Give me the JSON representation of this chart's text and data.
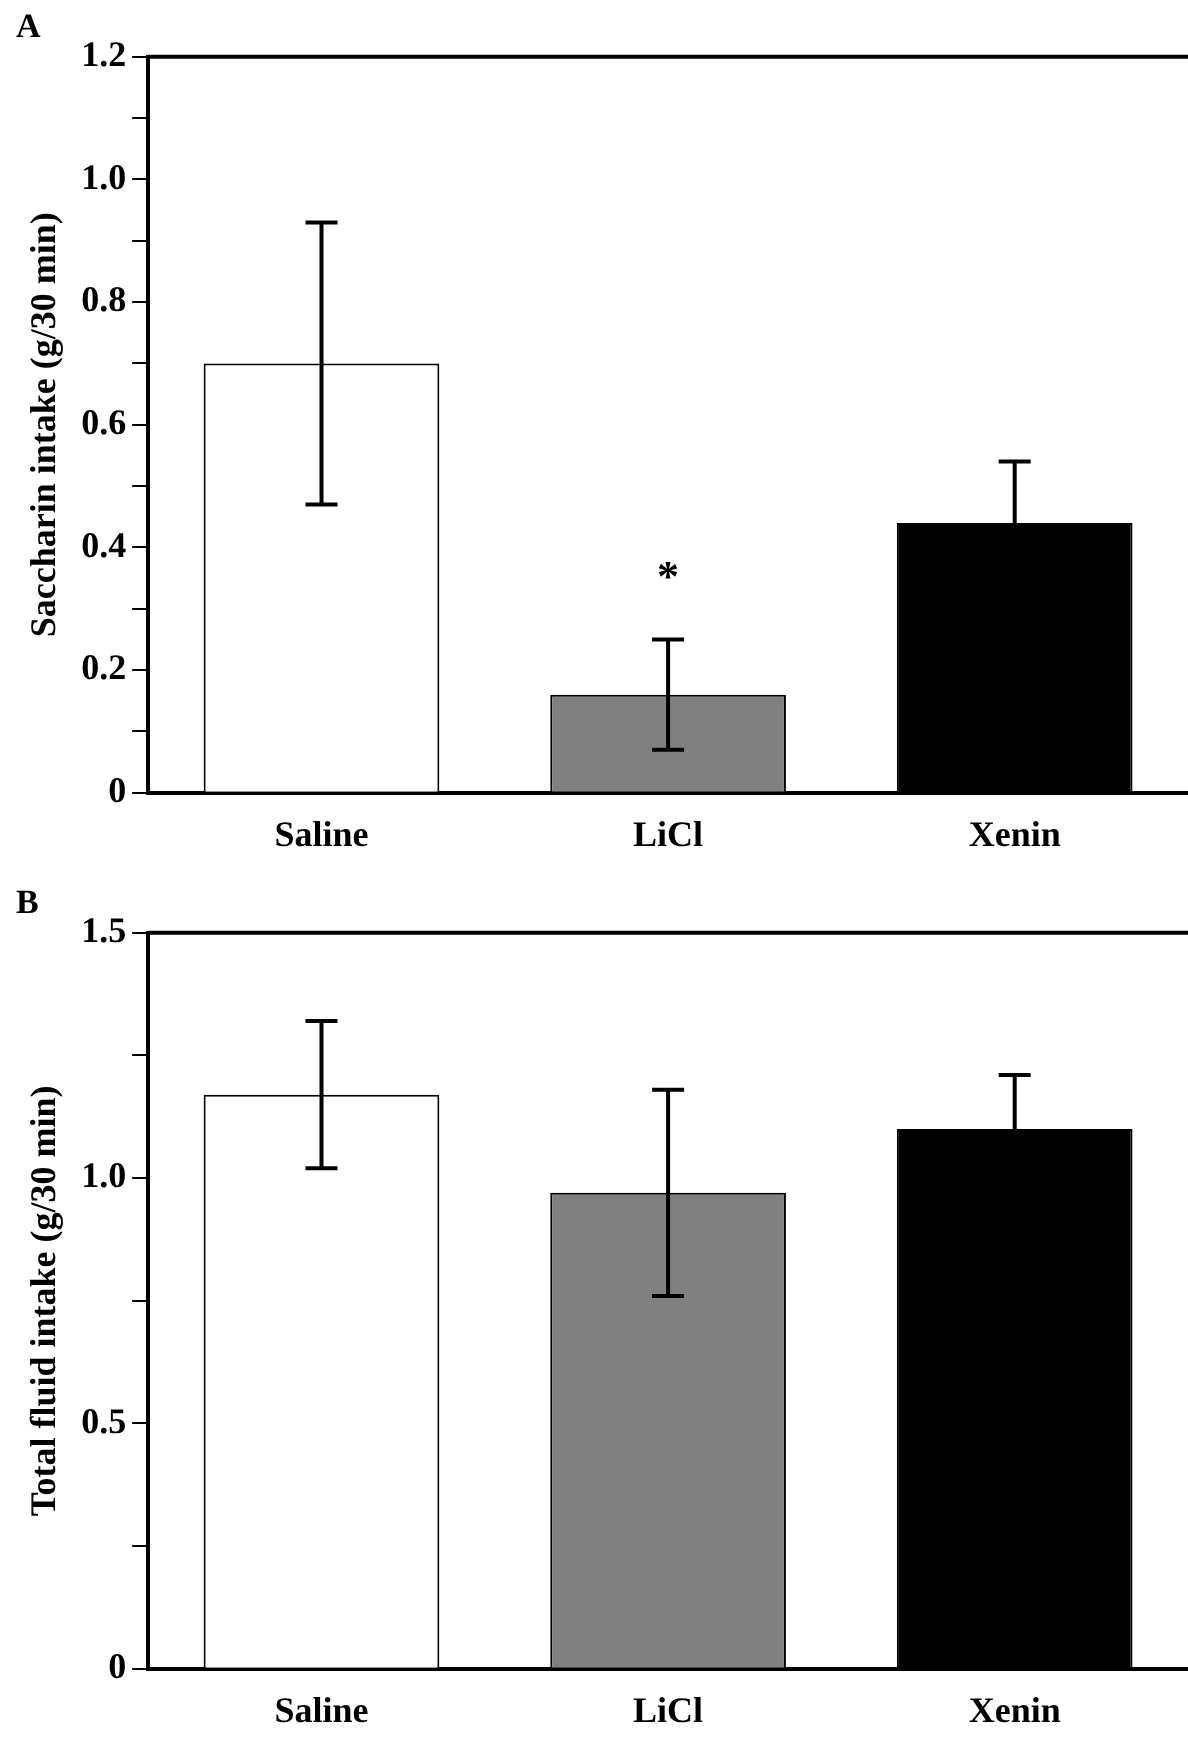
{
  "chart_data": [
    {
      "type": "bar",
      "title": "A",
      "ylabel": "Saccharin intake (g/30 min)",
      "categories": [
        "Saline",
        "LiCl",
        "Xenin"
      ],
      "values": [
        0.7,
        0.16,
        0.44
      ],
      "colors": [
        "#ffffff",
        "#808080",
        "#000000"
      ],
      "errors": [
        0.23,
        0.09,
        0.1
      ],
      "ylim": [
        0,
        1.2
      ],
      "yticks": [
        0,
        {
          "value": 0.1,
          "label": null
        },
        {
          "value": 0.2,
          "label": "0.2"
        },
        {
          "value": 0.3,
          "label": null
        },
        {
          "value": 0.4,
          "label": "0.4"
        },
        {
          "value": 0.5,
          "label": null
        },
        {
          "value": 0.6,
          "label": "0.6"
        },
        {
          "value": 0.7,
          "label": null
        },
        {
          "value": 0.8,
          "label": "0.8"
        },
        {
          "value": 0.9,
          "label": null
        },
        {
          "value": 1,
          "label": "1.0"
        },
        {
          "value": 1.1,
          "label": null
        },
        {
          "value": 1.2,
          "label": "1.2"
        }
      ],
      "annotations": [
        "*"
      ],
      "grid": false,
      "legend": false
    },
    {
      "type": "bar",
      "title": "B",
      "ylabel": "Total fluid intake (g/30 min)",
      "categories": [
        "Saline",
        "LiCl",
        "Xenin"
      ],
      "values": [
        1.17,
        0.97,
        1.1
      ],
      "colors": [
        "#ffffff",
        "#808080",
        "#000000"
      ],
      "errors": [
        0.15,
        0.21,
        0.11
      ],
      "ylim": [
        0,
        1.5
      ],
      "yticks": [
        0,
        {
          "value": 0.25,
          "label": null
        },
        0.5,
        {
          "value": 0.75,
          "label": null
        },
        {
          "value": 1,
          "label": "1.0"
        },
        {
          "value": 1.25,
          "label": null
        },
        1.5
      ],
      "grid": false,
      "legend": false
    }
  ]
}
